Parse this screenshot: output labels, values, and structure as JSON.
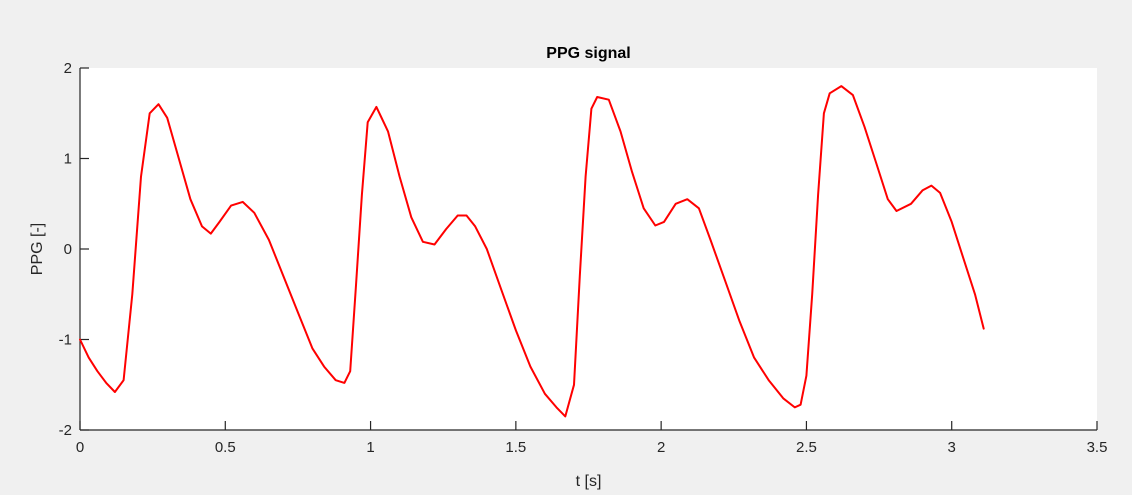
{
  "colors": {
    "figure_background": "#f0f0f0",
    "axes_background": "#ffffff",
    "axis_color": "#262626",
    "line_color": "#ff0000"
  },
  "chart_data": {
    "type": "line",
    "title": "PPG signal",
    "xlabel": "t [s]",
    "ylabel": "PPG [-]",
    "xlim": [
      0,
      3.5
    ],
    "ylim": [
      -2,
      2
    ],
    "xticks": [
      0,
      0.5,
      1,
      1.5,
      2,
      2.5,
      3,
      3.5
    ],
    "xtick_labels": [
      "0",
      "0.5",
      "1",
      "1.5",
      "2",
      "2.5",
      "3",
      "3.5"
    ],
    "yticks": [
      -2,
      -1,
      0,
      1,
      2
    ],
    "ytick_labels": [
      "-2",
      "-1",
      "0",
      "1",
      "2"
    ],
    "grid": false,
    "legend": "none",
    "series": [
      {
        "color": "#ff0000",
        "x": [
          0.0,
          0.03,
          0.06,
          0.09,
          0.12,
          0.15,
          0.18,
          0.21,
          0.24,
          0.27,
          0.3,
          0.34,
          0.38,
          0.42,
          0.45,
          0.48,
          0.52,
          0.56,
          0.6,
          0.65,
          0.7,
          0.75,
          0.8,
          0.84,
          0.88,
          0.91,
          0.93,
          0.95,
          0.97,
          0.99,
          1.02,
          1.06,
          1.1,
          1.14,
          1.18,
          1.22,
          1.26,
          1.3,
          1.33,
          1.36,
          1.4,
          1.45,
          1.5,
          1.55,
          1.6,
          1.64,
          1.67,
          1.7,
          1.72,
          1.74,
          1.76,
          1.78,
          1.82,
          1.86,
          1.9,
          1.94,
          1.98,
          2.01,
          2.05,
          2.09,
          2.13,
          2.17,
          2.22,
          2.27,
          2.32,
          2.37,
          2.42,
          2.46,
          2.48,
          2.5,
          2.52,
          2.54,
          2.56,
          2.58,
          2.62,
          2.66,
          2.7,
          2.74,
          2.78,
          2.81,
          2.86,
          2.9,
          2.93,
          2.96,
          3.0,
          3.04,
          3.08,
          3.11
        ],
        "y": [
          -1.0,
          -1.2,
          -1.35,
          -1.48,
          -1.58,
          -1.45,
          -0.5,
          0.8,
          1.5,
          1.6,
          1.45,
          1.0,
          0.55,
          0.25,
          0.17,
          0.3,
          0.48,
          0.52,
          0.4,
          0.1,
          -0.3,
          -0.7,
          -1.1,
          -1.3,
          -1.45,
          -1.48,
          -1.35,
          -0.4,
          0.6,
          1.4,
          1.57,
          1.3,
          0.8,
          0.35,
          0.08,
          0.05,
          0.22,
          0.37,
          0.37,
          0.25,
          0.0,
          -0.45,
          -0.9,
          -1.3,
          -1.6,
          -1.75,
          -1.85,
          -1.5,
          -0.3,
          0.8,
          1.55,
          1.68,
          1.65,
          1.3,
          0.85,
          0.45,
          0.26,
          0.3,
          0.5,
          0.55,
          0.45,
          0.1,
          -0.35,
          -0.8,
          -1.2,
          -1.45,
          -1.65,
          -1.75,
          -1.72,
          -1.4,
          -0.5,
          0.6,
          1.5,
          1.72,
          1.8,
          1.7,
          1.35,
          0.95,
          0.55,
          0.42,
          0.5,
          0.65,
          0.7,
          0.62,
          0.3,
          -0.1,
          -0.5,
          -0.88
        ]
      }
    ]
  }
}
